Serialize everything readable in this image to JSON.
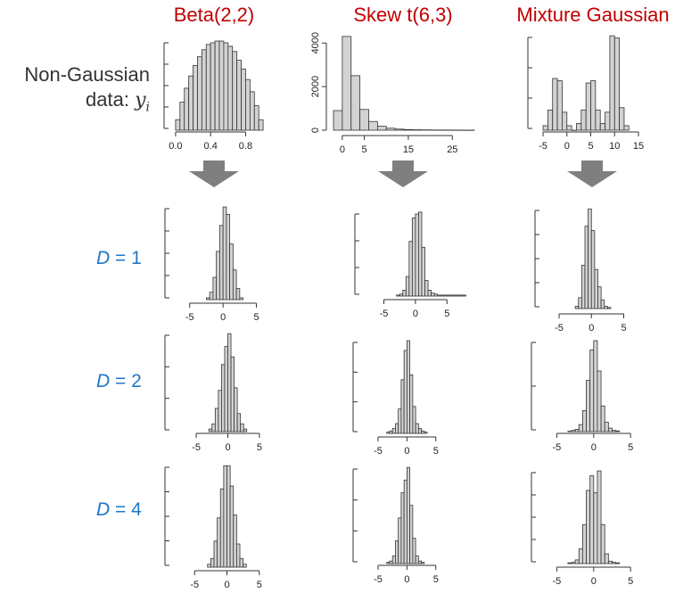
{
  "column_titles": [
    "Beta(2,2)",
    "Skew t(6,3)",
    "Mixture Gaussian"
  ],
  "top_row_label": {
    "line1": "Non-Gaussian",
    "line2_prefix": "data: ",
    "line2_var": "y",
    "line2_sub": "i"
  },
  "row_labels": [
    {
      "var": "D",
      "text": " = 1"
    },
    {
      "var": "D",
      "text": " = 2"
    },
    {
      "var": "D",
      "text": " = 4"
    }
  ],
  "colors": {
    "title": "#c00000",
    "row_label": "#1f78c8",
    "bar_fill": "#d3d3d3",
    "bar_stroke": "#333333",
    "arrow": "#7f7f7f"
  },
  "chart_data": [
    {
      "type": "bar",
      "panel": "beta-original",
      "row": 0,
      "col": 0,
      "xlim": [
        -0.05,
        1.05
      ],
      "xticks": [
        0.0,
        0.4,
        0.8
      ],
      "tick_labels": [
        "0.0",
        "0.4",
        "0.8"
      ],
      "yaxis_ticks": 5,
      "bin_start": 0.0,
      "bin_width": 0.05,
      "values": [
        0.6,
        1.6,
        2.4,
        3.1,
        3.7,
        4.2,
        4.6,
        4.9,
        5.0,
        5.1,
        5.1,
        5.0,
        4.8,
        4.5,
        4.0,
        3.5,
        2.9,
        2.2,
        1.4,
        0.6
      ]
    },
    {
      "type": "bar",
      "panel": "skewt-original",
      "row": 0,
      "col": 1,
      "xlim": [
        -2,
        30
      ],
      "xticks": [
        0,
        5,
        15,
        25
      ],
      "tick_labels": [
        "0",
        "5",
        "15",
        "25"
      ],
      "yticks": [
        0,
        2000,
        4000
      ],
      "ytick_labels": [
        "0",
        "2000",
        "4000"
      ],
      "ylim": [
        0,
        4500
      ],
      "bin_start": -2,
      "bin_width": 2,
      "values": [
        900,
        4300,
        2500,
        950,
        400,
        180,
        90,
        50,
        30,
        20,
        15,
        10,
        8,
        6,
        4,
        3
      ]
    },
    {
      "type": "bar",
      "panel": "mixture-original",
      "row": 0,
      "col": 2,
      "xlim": [
        -6.5,
        15
      ],
      "xticks": [
        -5,
        0,
        5,
        10,
        15
      ],
      "tick_labels": [
        "-5",
        "0",
        "5",
        "10",
        "15"
      ],
      "yaxis_ticks": 4,
      "bin_start": -5,
      "bin_width": 1,
      "values": [
        0.2,
        0.9,
        2.3,
        2.2,
        0.8,
        0.2,
        0.0,
        0.3,
        0.9,
        2.1,
        2.2,
        0.9,
        0.3,
        0.8,
        4.2,
        4.1,
        1.0,
        0.2
      ]
    },
    {
      "type": "bar",
      "panel": "beta-d1",
      "row": 1,
      "col": 0,
      "xlim": [
        -5.5,
        6
      ],
      "xticks": [
        -5,
        0,
        5
      ],
      "tick_labels": [
        "-5",
        "0",
        "5"
      ],
      "yaxis_ticks": 5,
      "bin_start": -2.5,
      "bin_width": 0.5,
      "values": [
        0.1,
        0.4,
        1.2,
        2.6,
        4.0,
        5.0,
        4.6,
        3.0,
        1.6,
        0.6,
        0.1
      ]
    },
    {
      "type": "bar",
      "panel": "skewt-d1",
      "row": 1,
      "col": 1,
      "xlim": [
        -5.5,
        8.5
      ],
      "xticks": [
        -5,
        0,
        5
      ],
      "tick_labels": [
        "-5",
        "0",
        "5"
      ],
      "yaxis_ticks": 4,
      "bin_start": -3,
      "bin_width": 0.5,
      "values": [
        0.05,
        0.1,
        0.3,
        1.0,
        2.8,
        4.0,
        4.2,
        4.3,
        2.5,
        0.8,
        0.3,
        0.15,
        0.1,
        0.05,
        0.05,
        0.05,
        0.05,
        0.05,
        0.05,
        0.05,
        0.05,
        0.05
      ]
    },
    {
      "type": "bar",
      "panel": "mixture-d1",
      "row": 1,
      "col": 2,
      "xlim": [
        -5,
        7
      ],
      "xticks": [
        -5,
        0,
        5
      ],
      "tick_labels": [
        "-5",
        "0",
        "5"
      ],
      "yaxis_ticks": 5,
      "bin_start": -2.5,
      "bin_width": 0.5,
      "values": [
        0.1,
        0.5,
        2.0,
        3.8,
        4.6,
        3.6,
        1.8,
        1.0,
        0.4,
        0.1,
        0.05
      ]
    },
    {
      "type": "bar",
      "panel": "beta-d2",
      "row": 2,
      "col": 0,
      "xlim": [
        -6,
        6
      ],
      "xticks": [
        -5,
        0,
        5
      ],
      "tick_labels": [
        "-5",
        "0",
        "5"
      ],
      "yaxis_ticks": 4,
      "bin_start": -3,
      "bin_width": 0.5,
      "values": [
        0.1,
        0.3,
        0.9,
        1.6,
        2.6,
        3.3,
        3.8,
        2.9,
        1.7,
        0.7,
        0.3,
        0.1
      ]
    },
    {
      "type": "bar",
      "panel": "skewt-d2",
      "row": 2,
      "col": 1,
      "xlim": [
        -5,
        5.5
      ],
      "xticks": [
        -5,
        0,
        5
      ],
      "tick_labels": [
        "-5",
        "0",
        "5"
      ],
      "yaxis_ticks": 4,
      "bin_start": -3.5,
      "bin_width": 0.5,
      "values": [
        0.05,
        0.1,
        0.2,
        0.4,
        1.0,
        2.2,
        3.4,
        3.8,
        2.4,
        1.1,
        0.4,
        0.2,
        0.1,
        0.05
      ]
    },
    {
      "type": "bar",
      "panel": "mixture-d2",
      "row": 2,
      "col": 2,
      "xlim": [
        -6.5,
        8
      ],
      "xticks": [
        -5,
        0,
        5
      ],
      "tick_labels": [
        "-5",
        "0",
        "5"
      ],
      "yaxis_ticks": 3,
      "bin_start": -3.5,
      "bin_width": 0.5,
      "values": [
        0.02,
        0.05,
        0.1,
        0.3,
        0.9,
        2.2,
        3.5,
        3.9,
        2.6,
        1.1,
        0.4,
        0.15,
        0.05,
        0.03
      ]
    },
    {
      "type": "bar",
      "panel": "beta-d4",
      "row": 3,
      "col": 0,
      "xlim": [
        -6,
        6
      ],
      "xticks": [
        -5,
        0,
        5
      ],
      "tick_labels": [
        "-5",
        "0",
        "5"
      ],
      "yaxis_ticks": 5,
      "bin_start": -3,
      "bin_width": 0.5,
      "values": [
        0.1,
        0.3,
        0.9,
        1.7,
        2.7,
        3.5,
        3.5,
        2.8,
        1.8,
        0.8,
        0.3,
        0.1
      ]
    },
    {
      "type": "bar",
      "panel": "skewt-d4",
      "row": 3,
      "col": 1,
      "xlim": [
        -5,
        5.5
      ],
      "xticks": [
        -5,
        0,
        5
      ],
      "tick_labels": [
        "-5",
        "0",
        "5"
      ],
      "yaxis_ticks": 4,
      "bin_start": -3.5,
      "bin_width": 0.5,
      "values": [
        0.05,
        0.1,
        0.3,
        0.9,
        1.8,
        2.8,
        3.3,
        3.8,
        2.3,
        1.0,
        0.3,
        0.1,
        0.05
      ]
    },
    {
      "type": "bar",
      "panel": "mixture-d4",
      "row": 3,
      "col": 2,
      "xlim": [
        -6.5,
        8
      ],
      "xticks": [
        -5,
        0,
        5
      ],
      "tick_labels": [
        "-5",
        "0",
        "5"
      ],
      "yaxis_ticks": 5,
      "bin_start": -3.5,
      "bin_width": 0.5,
      "values": [
        0.03,
        0.05,
        0.15,
        0.6,
        1.6,
        3.0,
        3.6,
        2.9,
        3.8,
        1.6,
        0.4,
        0.1,
        0.05,
        0.03
      ]
    }
  ]
}
